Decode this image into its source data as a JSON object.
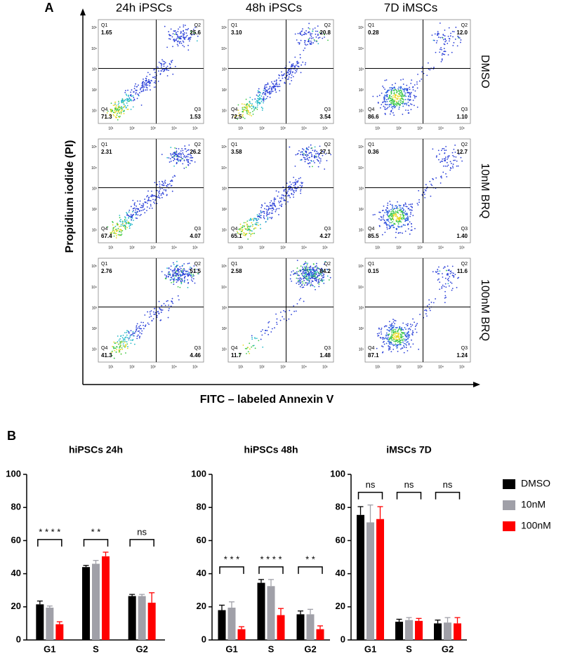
{
  "panel_a": {
    "label": "A",
    "columns": [
      "24h iPSCs",
      "48h iPSCs",
      "7D iMSCs"
    ],
    "rows": [
      "DMSO",
      "10nM BRQ",
      "100nM BRQ"
    ],
    "x_label": "FITC – labeled Annexin V",
    "y_label": "Propidium iodide (PI)",
    "axis_ticks": [
      "10¹",
      "10²",
      "10³",
      "10⁴",
      "10⁵"
    ],
    "quadrant_names": [
      "Q1",
      "Q2",
      "Q3",
      "Q4"
    ],
    "plots": [
      [
        [
          "1.65",
          "25.6",
          "1.53",
          "71.3"
        ],
        [
          "3.10",
          "20.8",
          "3.54",
          "72.5"
        ],
        [
          "0.28",
          "12.0",
          "1.10",
          "86.6"
        ]
      ],
      [
        [
          "2.31",
          "26.2",
          "4.07",
          "67.4"
        ],
        [
          "3.58",
          "27.1",
          "4.27",
          "65.1"
        ],
        [
          "0.36",
          "12.7",
          "1.40",
          "85.5"
        ]
      ],
      [
        [
          "2.76",
          "51.5",
          "4.46",
          "41.3"
        ],
        [
          "2.58",
          "84.2",
          "1.48",
          "11.7"
        ],
        [
          "0.15",
          "11.6",
          "1.24",
          "87.1"
        ]
      ]
    ]
  },
  "panel_b_label": "B",
  "chart_data": [
    {
      "type": "bar",
      "title": "hiPSCs 24h",
      "categories": [
        "G1",
        "S",
        "G2"
      ],
      "series": [
        {
          "color": "#000000",
          "values": [
            21.5,
            44,
            26.5
          ],
          "errors": [
            2,
            1,
            1
          ]
        },
        {
          "color": "#a0a0a8",
          "values": [
            19.5,
            46,
            26.5
          ],
          "errors": [
            1,
            2,
            1
          ]
        },
        {
          "color": "#ff0000",
          "values": [
            9.5,
            50.5,
            22.5
          ],
          "errors": [
            1.5,
            2.5,
            6
          ]
        }
      ],
      "annotations": [
        "* * * *",
        "* *",
        "ns"
      ],
      "ylim": [
        0,
        100
      ],
      "yticks": [
        0,
        20,
        40,
        60,
        80,
        100
      ]
    },
    {
      "type": "bar",
      "title": "hiPSCs 48h",
      "categories": [
        "G1",
        "S",
        "G2"
      ],
      "series": [
        {
          "color": "#000000",
          "values": [
            18,
            34.5,
            15.5
          ],
          "errors": [
            3,
            2,
            2
          ]
        },
        {
          "color": "#a0a0a8",
          "values": [
            19.5,
            32.5,
            15.5
          ],
          "errors": [
            3.5,
            4,
            3
          ]
        },
        {
          "color": "#ff0000",
          "values": [
            6.5,
            15,
            6.5
          ],
          "errors": [
            1.5,
            4,
            2
          ]
        }
      ],
      "annotations": [
        "* * *",
        "* * * *",
        "* *"
      ],
      "ylim": [
        0,
        100
      ],
      "yticks": [
        0,
        20,
        40,
        60,
        80,
        100
      ]
    },
    {
      "type": "bar",
      "title": "iMSCs 7D",
      "categories": [
        "G1",
        "S",
        "G2"
      ],
      "series": [
        {
          "name": "DMSO",
          "color": "#000000",
          "values": [
            75.5,
            11,
            10
          ],
          "errors": [
            5,
            1.5,
            2
          ]
        },
        {
          "name": "10nM",
          "color": "#a0a0a8",
          "values": [
            71,
            12,
            10.5
          ],
          "errors": [
            10.5,
            1.5,
            3
          ]
        },
        {
          "name": "100nM",
          "color": "#ff0000",
          "values": [
            73,
            11.5,
            10
          ],
          "errors": [
            7.5,
            1.5,
            3.5
          ]
        }
      ],
      "annotations": [
        "ns",
        "ns",
        "ns"
      ],
      "ylim": [
        0,
        100
      ],
      "yticks": [
        0,
        20,
        40,
        60,
        80,
        100
      ]
    }
  ]
}
